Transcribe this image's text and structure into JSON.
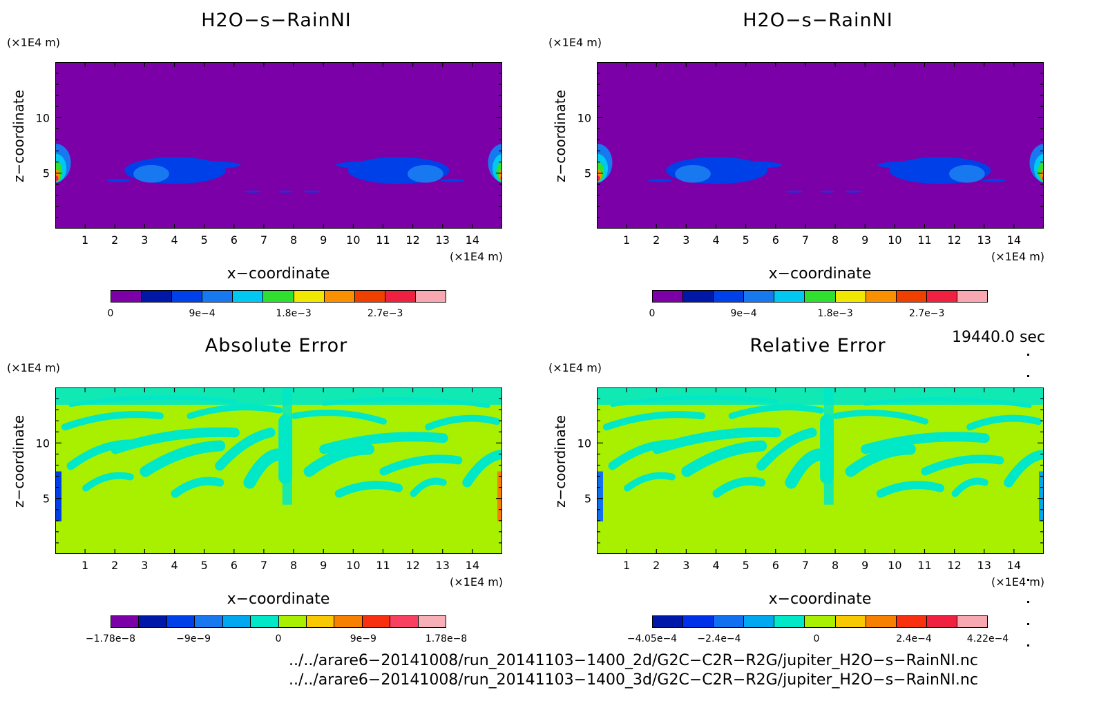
{
  "chart_data": [
    {
      "type": "heatmap",
      "title": "H2O−s−RainNI",
      "xlabel": "x−coordinate",
      "ylabel": "z−coordinate",
      "x_unit": "(×1E4 m)",
      "y_unit": "(×1E4 m)",
      "xlim": [
        0,
        15
      ],
      "ylim": [
        0,
        15
      ],
      "xticks": [
        "1",
        "2",
        "3",
        "4",
        "5",
        "6",
        "7",
        "8",
        "9",
        "10",
        "11",
        "12",
        "13",
        "14"
      ],
      "yticks": [
        "5",
        "10"
      ],
      "colorbar": {
        "colors": [
          "#7b00a8",
          "#0018a8",
          "#0040e8",
          "#1878f0",
          "#00c8f0",
          "#30e030",
          "#f0e800",
          "#f89000",
          "#f04000",
          "#f02040",
          "#f8a8b0"
        ],
        "tick_labels": [
          {
            "value": 0,
            "label": "0"
          },
          {
            "value": 0.0009,
            "label": "9e−4"
          },
          {
            "value": 0.0018,
            "label": "1.8e−3"
          },
          {
            "value": 0.0027,
            "label": "2.7e−3"
          }
        ],
        "range": [
          0,
          0.0033
        ]
      }
    },
    {
      "type": "heatmap",
      "title": "H2O−s−RainNI",
      "xlabel": "x−coordinate",
      "ylabel": "z−coordinate",
      "x_unit": "(×1E4 m)",
      "y_unit": "(×1E4 m)",
      "xlim": [
        0,
        15
      ],
      "ylim": [
        0,
        15
      ],
      "xticks": [
        "1",
        "2",
        "3",
        "4",
        "5",
        "6",
        "7",
        "8",
        "9",
        "10",
        "11",
        "12",
        "13",
        "14"
      ],
      "yticks": [
        "5",
        "10"
      ],
      "colorbar": {
        "colors": [
          "#7b00a8",
          "#0018a8",
          "#0040e8",
          "#1878f0",
          "#00c8f0",
          "#30e030",
          "#f0e800",
          "#f89000",
          "#f04000",
          "#f02040",
          "#f8a8b0"
        ],
        "tick_labels": [
          {
            "value": 0,
            "label": "0"
          },
          {
            "value": 0.0009,
            "label": "9e−4"
          },
          {
            "value": 0.0018,
            "label": "1.8e−3"
          },
          {
            "value": 0.0027,
            "label": "2.7e−3"
          }
        ],
        "range": [
          0,
          0.0033
        ]
      }
    },
    {
      "type": "heatmap",
      "title": "Absolute Error",
      "xlabel": "x−coordinate",
      "ylabel": "z−coordinate",
      "x_unit": "(×1E4 m)",
      "y_unit": "(×1E4 m)",
      "xlim": [
        0,
        15
      ],
      "ylim": [
        0,
        15
      ],
      "xticks": [
        "1",
        "2",
        "3",
        "4",
        "5",
        "6",
        "7",
        "8",
        "9",
        "10",
        "11",
        "12",
        "13",
        "14"
      ],
      "yticks": [
        "5",
        "10"
      ],
      "colorbar": {
        "colors": [
          "#7b00a8",
          "#0018a8",
          "#0040e8",
          "#1878f0",
          "#00a8f0",
          "#00e8c8",
          "#a8f000",
          "#f8c800",
          "#f88000",
          "#f83010",
          "#f84060",
          "#f8b0b8"
        ],
        "tick_labels": [
          {
            "value": -1.78e-08,
            "label": "−1.78e−8"
          },
          {
            "value": -9e-09,
            "label": "−9e−9"
          },
          {
            "value": 0,
            "label": "0"
          },
          {
            "value": 9e-09,
            "label": "9e−9"
          },
          {
            "value": 1.78e-08,
            "label": "1.78e−8"
          }
        ],
        "range": [
          -1.78e-08,
          1.78e-08
        ]
      }
    },
    {
      "type": "heatmap",
      "title": "Relative Error",
      "xlabel": "x−coordinate",
      "ylabel": "z−coordinate",
      "x_unit": "(×1E4 m)",
      "y_unit": "(×1E4 m)",
      "xlim": [
        0,
        15
      ],
      "ylim": [
        0,
        15
      ],
      "xticks": [
        "1",
        "2",
        "3",
        "4",
        "5",
        "6",
        "7",
        "8",
        "9",
        "10",
        "11",
        "12",
        "13",
        "14"
      ],
      "yticks": [
        "5",
        "10"
      ],
      "colorbar": {
        "colors": [
          "#0018a8",
          "#0030e8",
          "#1070f0",
          "#00a8f0",
          "#00e8c8",
          "#a8f000",
          "#f8c800",
          "#f88000",
          "#f83010",
          "#f02040",
          "#f8a8b0"
        ],
        "tick_labels": [
          {
            "value": -0.000405,
            "label": "−4.05e−4"
          },
          {
            "value": -0.00024,
            "label": "−2.4e−4"
          },
          {
            "value": 0,
            "label": "0"
          },
          {
            "value": 0.00024,
            "label": "2.4e−4"
          },
          {
            "value": 0.000422,
            "label": "4.22e−4"
          }
        ],
        "range": [
          -0.000405,
          0.000422
        ]
      }
    }
  ],
  "timestamp": "19440.0 sec",
  "files": [
    "../../arare6−20141008/run_20141103−1400_2d/G2C−C2R−R2G/jupiter_H2O−s−RainNI.nc",
    "../../arare6−20141008/run_20141103−1400_3d/G2C−C2R−R2G/jupiter_H2O−s−RainNI.nc"
  ]
}
